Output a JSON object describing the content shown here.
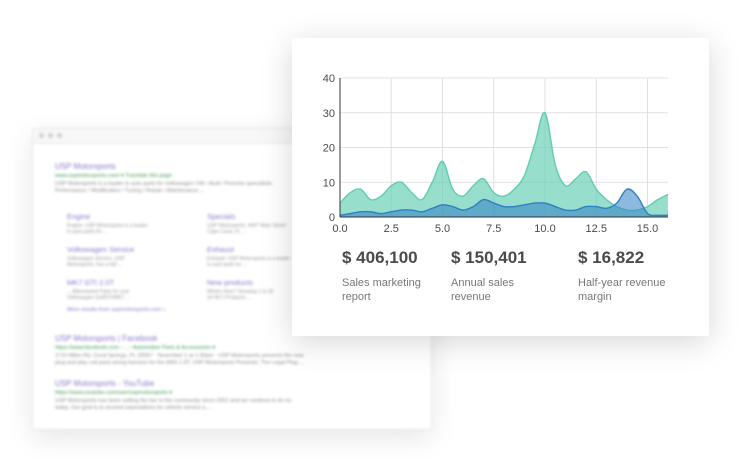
{
  "background_results": {
    "result1": {
      "title": "USP Motorsports",
      "url": "www.uspmotorsports.com/ ▾ Translate this page",
      "snippet1": "USP Motorsports is a leader in auto parts for Volkswagen VW / Audi / Porsche specialists.",
      "snippet2": "Performance / Modification / Tuning / Repair / Maintenance ..."
    },
    "sitelinks": [
      {
        "title": "Engine",
        "line1": "Engine. USP Motorsports is a leader",
        "line2": "in auto parts for ..."
      },
      {
        "title": "Specials",
        "line1": "USP Motorsports, 4407 Main Street",
        "line2": "Cape Coral, FL ..."
      },
      {
        "title": "Volkswagen Service",
        "line1": "Volkswagen Service. USP",
        "line2": "Motorsports, has a full ..."
      },
      {
        "title": "Exhaust",
        "line1": "Exhaust. USP Motorsports is a leader",
        "line2": "in auto parts for ..."
      },
      {
        "title": "MK7 GTI 2.0T",
        "line1": "... Aftermarket Parts for your",
        "line2": "Volkswagen GolfGTI/MK7 ..."
      },
      {
        "title": "New products",
        "line1": "What's New? Showing 1 to 20",
        "line2": "(of 467) Products ..."
      }
    ],
    "more_results": "More results from uspmotorsports.com »",
    "result2": {
      "title": "USP Motorsports | Facebook",
      "url": "https://www.facebook.com › ... › Automotive Parts & Accessories ▾",
      "snippet1": "1710 Miles Rd, Coral Springs, FL 33067 · November 1 at 1:30pm · USP Motorsports presents the new",
      "snippet2": "plug and play coil pack wiring harness for the MK6 1.8T. USP Motorsports Presents: The Legal Plug ..."
    },
    "result3": {
      "title": "USP Motorsports - YouTube",
      "url": "https://www.youtube.com/user/uspmotorsports ▾",
      "snippet1": "USP Motorsports has been setting the bar in the community since 2001 and we continue to do so",
      "snippet2": "today. Our goal is to exceed expectations for vehicle service a ..."
    }
  },
  "chart_data": {
    "type": "area",
    "x_ticks": [
      "0.0",
      "2.5",
      "5.0",
      "7.5",
      "10.0",
      "12.5",
      "15.0"
    ],
    "y_ticks": [
      "0",
      "10",
      "20",
      "30",
      "40"
    ],
    "xlim": [
      0,
      16
    ],
    "ylim": [
      0,
      40
    ],
    "grid": true,
    "series": [
      {
        "color": "#5fcdb0",
        "x": [
          0,
          0.5,
          1,
          1.5,
          2,
          2.5,
          3,
          3.5,
          4,
          4.5,
          5,
          5.5,
          6,
          6.5,
          7,
          7.5,
          8,
          8.5,
          9,
          9.5,
          10,
          10.5,
          11,
          11.5,
          12,
          12.5,
          13,
          13.5,
          14,
          14.5,
          15,
          15.5,
          16
        ],
        "values": [
          4,
          7,
          8,
          5,
          6,
          9,
          10,
          7,
          5,
          10,
          16,
          8,
          6,
          9,
          11,
          7,
          6,
          8,
          12,
          21,
          30,
          15,
          9,
          11,
          13,
          8,
          5,
          3,
          2,
          2,
          3,
          5,
          6.5
        ]
      },
      {
        "color": "#2f7fc4",
        "x": [
          0,
          0.5,
          1,
          1.5,
          2,
          2.5,
          3,
          3.5,
          4,
          4.5,
          5,
          5.5,
          6,
          6.5,
          7,
          7.5,
          8,
          8.5,
          9,
          9.5,
          10,
          10.5,
          11,
          11.5,
          12,
          12.5,
          13,
          13.5,
          14,
          14.5,
          15,
          15.5,
          16
        ],
        "values": [
          0.5,
          1,
          1.5,
          1.5,
          1,
          1.5,
          2,
          2,
          1.5,
          2.5,
          3.5,
          3,
          2,
          3,
          5,
          4,
          3,
          3,
          3.5,
          4,
          4,
          3,
          2,
          2,
          3,
          3,
          2.5,
          4,
          8,
          6,
          1,
          0.5,
          0.5
        ]
      }
    ]
  },
  "stats": [
    {
      "value": "$ 406,100",
      "label_line1": "Sales marketing",
      "label_line2": "report"
    },
    {
      "value": "$ 150,401",
      "label_line1": "Annual sales",
      "label_line2": "revenue"
    },
    {
      "value": "$ 16,822",
      "label_line1": "Half-year revenue",
      "label_line2": "margin"
    }
  ]
}
